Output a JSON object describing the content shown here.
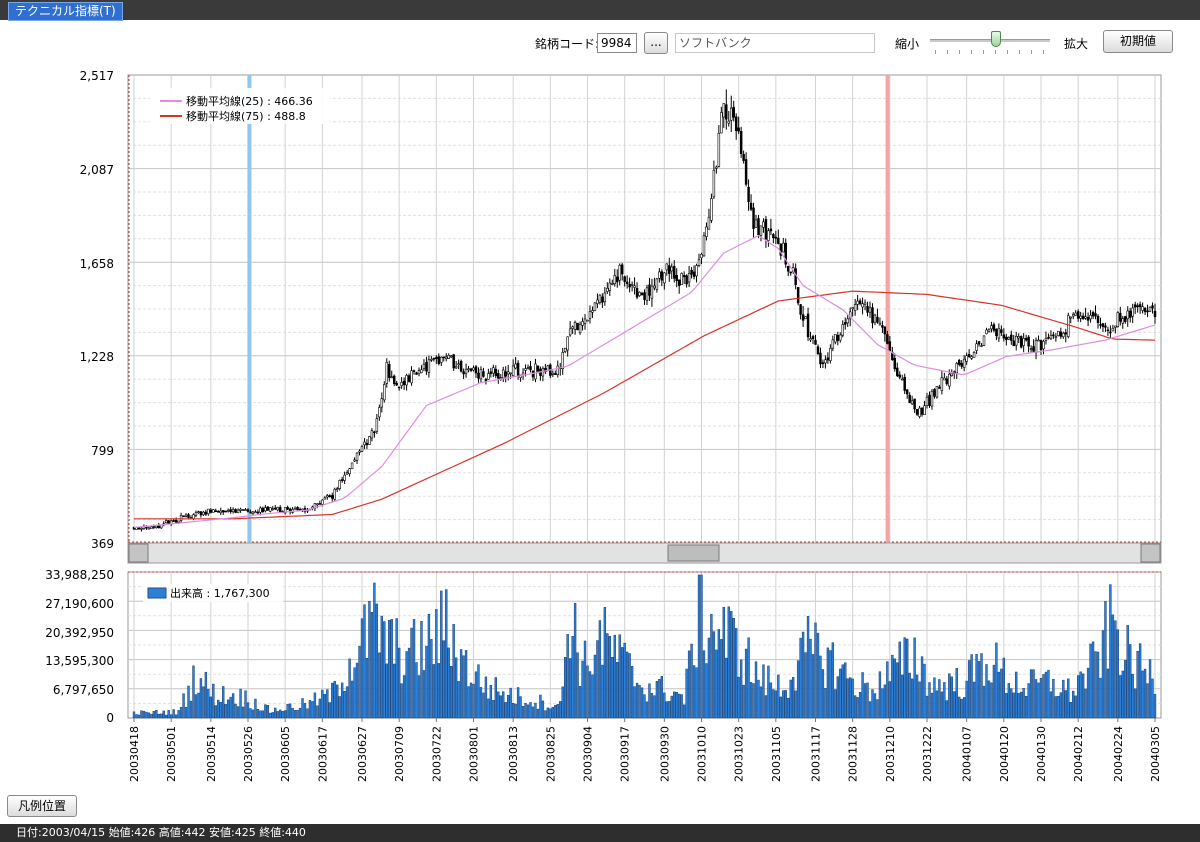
{
  "window": {
    "tab_label": "テクニカル指標(T)"
  },
  "toolbar": {
    "code_label": "銘柄コード:",
    "code_value": "9984",
    "browse_label": "...",
    "name_value": "ソフトバンク",
    "zoom_out_label": "縮小",
    "zoom_in_label": "拡大",
    "zoom_level": 0.55,
    "reset_label": "初期値"
  },
  "legend_position_label": "凡例位置",
  "status_text": "日付:2003/04/15 始値:426 高値:442 安値:425 終値:440",
  "colors": {
    "up": "#ffffff",
    "down": "#000000",
    "ma25": "#dd8ee0",
    "ma75": "#d6332b",
    "volume": "#2e7fd6",
    "cursor_blue": "#8ec8ef",
    "cursor_red": "#f2a7a7"
  },
  "chart_data": [
    {
      "type": "candlestick",
      "y_ticks": [
        "2,517",
        "2,087",
        "1,658",
        "1,228",
        "799",
        "369"
      ],
      "ylim": [
        369,
        2517
      ],
      "legend": [
        {
          "label": "移動平均線(25) : 466.36",
          "color": "#dd8ee0"
        },
        {
          "label": "移動平均線(75) : 488.8",
          "color": "#d6332b"
        }
      ],
      "legend_placement": "top-left",
      "grid": true,
      "cursor_lines": [
        {
          "date": "20030529",
          "color": "blue"
        },
        {
          "date": "20031205",
          "color": "red"
        }
      ],
      "anchors_close": [
        [
          0,
          440
        ],
        [
          10,
          450
        ],
        [
          25,
          505
        ],
        [
          40,
          520
        ],
        [
          55,
          520
        ],
        [
          70,
          525
        ],
        [
          80,
          590
        ],
        [
          88,
          730
        ],
        [
          97,
          880
        ],
        [
          102,
          1180
        ],
        [
          106,
          1080
        ],
        [
          115,
          1170
        ],
        [
          125,
          1230
        ],
        [
          133,
          1150
        ],
        [
          142,
          1140
        ],
        [
          152,
          1160
        ],
        [
          163,
          1160
        ],
        [
          172,
          1160
        ],
        [
          175,
          1330
        ],
        [
          185,
          1440
        ],
        [
          196,
          1610
        ],
        [
          205,
          1500
        ],
        [
          215,
          1620
        ],
        [
          225,
          1570
        ],
        [
          232,
          1830
        ],
        [
          238,
          2400
        ],
        [
          244,
          2250
        ],
        [
          250,
          1810
        ],
        [
          258,
          1800
        ],
        [
          266,
          1590
        ],
        [
          270,
          1400
        ],
        [
          278,
          1190
        ],
        [
          283,
          1300
        ],
        [
          292,
          1460
        ],
        [
          298,
          1420
        ],
        [
          305,
          1260
        ],
        [
          313,
          1000
        ],
        [
          318,
          980
        ],
        [
          326,
          1100
        ],
        [
          335,
          1210
        ],
        [
          345,
          1340
        ],
        [
          354,
          1310
        ],
        [
          362,
          1260
        ],
        [
          372,
          1320
        ],
        [
          382,
          1450
        ],
        [
          392,
          1350
        ],
        [
          404,
          1460
        ],
        [
          412,
          1440
        ]
      ],
      "ma25_points": [
        [
          0,
          440
        ],
        [
          40,
          485
        ],
        [
          55,
          505
        ],
        [
          70,
          520
        ],
        [
          85,
          575
        ],
        [
          100,
          720
        ],
        [
          118,
          1000
        ],
        [
          140,
          1105
        ],
        [
          160,
          1145
        ],
        [
          175,
          1180
        ],
        [
          200,
          1350
        ],
        [
          225,
          1520
        ],
        [
          238,
          1700
        ],
        [
          252,
          1780
        ],
        [
          260,
          1720
        ],
        [
          270,
          1550
        ],
        [
          286,
          1440
        ],
        [
          300,
          1280
        ],
        [
          315,
          1185
        ],
        [
          335,
          1140
        ],
        [
          352,
          1225
        ],
        [
          370,
          1255
        ],
        [
          392,
          1300
        ],
        [
          412,
          1370
        ]
      ],
      "ma75_points": [
        [
          0,
          480
        ],
        [
          40,
          480
        ],
        [
          80,
          500
        ],
        [
          100,
          570
        ],
        [
          150,
          830
        ],
        [
          190,
          1060
        ],
        [
          230,
          1320
        ],
        [
          260,
          1480
        ],
        [
          290,
          1525
        ],
        [
          320,
          1510
        ],
        [
          350,
          1460
        ],
        [
          380,
          1360
        ],
        [
          395,
          1305
        ],
        [
          412,
          1300
        ]
      ]
    },
    {
      "type": "bar",
      "y_ticks": [
        "33,988,250",
        "27,190,600",
        "20,392,950",
        "13,595,300",
        "6,797,650",
        "0"
      ],
      "ylim": [
        0,
        33988250
      ],
      "legend": [
        {
          "label": "出来高 : 1,767,300",
          "color": "#2e7fd6"
        }
      ],
      "legend_placement": "top-left",
      "anchors_volume": [
        [
          0,
          1200000
        ],
        [
          18,
          1500000
        ],
        [
          25,
          11000000
        ],
        [
          32,
          6000000
        ],
        [
          45,
          5000000
        ],
        [
          55,
          1800000
        ],
        [
          70,
          3500000
        ],
        [
          80,
          6000000
        ],
        [
          88,
          15000000
        ],
        [
          97,
          24000000
        ],
        [
          103,
          18000000
        ],
        [
          110,
          16000000
        ],
        [
          118,
          18000000
        ],
        [
          126,
          23000000
        ],
        [
          134,
          13000000
        ],
        [
          142,
          8000000
        ],
        [
          150,
          6000000
        ],
        [
          160,
          4500000
        ],
        [
          172,
          3000000
        ],
        [
          176,
          28000000
        ],
        [
          181,
          12000000
        ],
        [
          188,
          20000000
        ],
        [
          195,
          16000000
        ],
        [
          205,
          8000000
        ],
        [
          215,
          7000000
        ],
        [
          222,
          5000000
        ],
        [
          228,
          26000000
        ],
        [
          236,
          22000000
        ],
        [
          244,
          18000000
        ],
        [
          252,
          10000000
        ],
        [
          262,
          7500000
        ],
        [
          272,
          17000000
        ],
        [
          280,
          15000000
        ],
        [
          290,
          9000000
        ],
        [
          298,
          7000000
        ],
        [
          305,
          11000000
        ],
        [
          315,
          16000000
        ],
        [
          322,
          8000000
        ],
        [
          335,
          9000000
        ],
        [
          345,
          15000000
        ],
        [
          352,
          10000000
        ],
        [
          360,
          8000000
        ],
        [
          370,
          9000000
        ],
        [
          378,
          6500000
        ],
        [
          388,
          14000000
        ],
        [
          395,
          24000000
        ],
        [
          402,
          14000000
        ],
        [
          412,
          10000000
        ]
      ],
      "x_tick_labels": [
        "20030418",
        "20030501",
        "20030514",
        "20030526",
        "20030605",
        "20030617",
        "20030627",
        "20030709",
        "20030722",
        "20030801",
        "20030813",
        "20030825",
        "20030904",
        "20030917",
        "20030930",
        "20031010",
        "20031023",
        "20031105",
        "20031117",
        "20031128",
        "20031210",
        "20031222",
        "20040107",
        "20040120",
        "20040130",
        "20040212",
        "20040224",
        "20040305"
      ]
    }
  ]
}
